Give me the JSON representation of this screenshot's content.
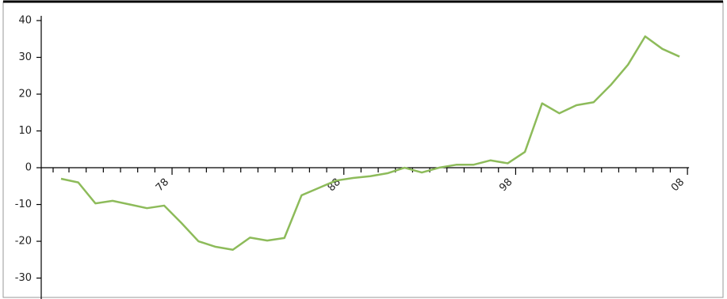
{
  "chart_data": {
    "type": "line",
    "categories": [
      null,
      null,
      null,
      null,
      null,
      null,
      "78",
      null,
      null,
      null,
      null,
      null,
      null,
      null,
      null,
      null,
      "88",
      null,
      null,
      null,
      null,
      null,
      null,
      null,
      null,
      null,
      "98",
      null,
      null,
      null,
      null,
      null,
      null,
      null,
      null,
      null,
      "08"
    ],
    "series": [
      {
        "color": "#8dbb5a",
        "values": [
          -3,
          -4,
          -9.7,
          -9,
          -10,
          -11,
          -10.3,
          -15,
          -20,
          -21.5,
          -22.3,
          -19,
          -19.8,
          -19.1,
          -7.5,
          -5.5,
          -3.5,
          -2.8,
          -2.3,
          -1.5,
          0,
          -1.3,
          0,
          0.8,
          0.8,
          2,
          1.2,
          4.3,
          17.5,
          14.8,
          17,
          17.8,
          22.5,
          28,
          35.7,
          32.3,
          30.2
        ]
      }
    ],
    "ylim": [
      -35,
      40
    ],
    "yticks": [
      -30,
      -20,
      -10,
      0,
      10,
      20,
      30,
      40
    ]
  }
}
